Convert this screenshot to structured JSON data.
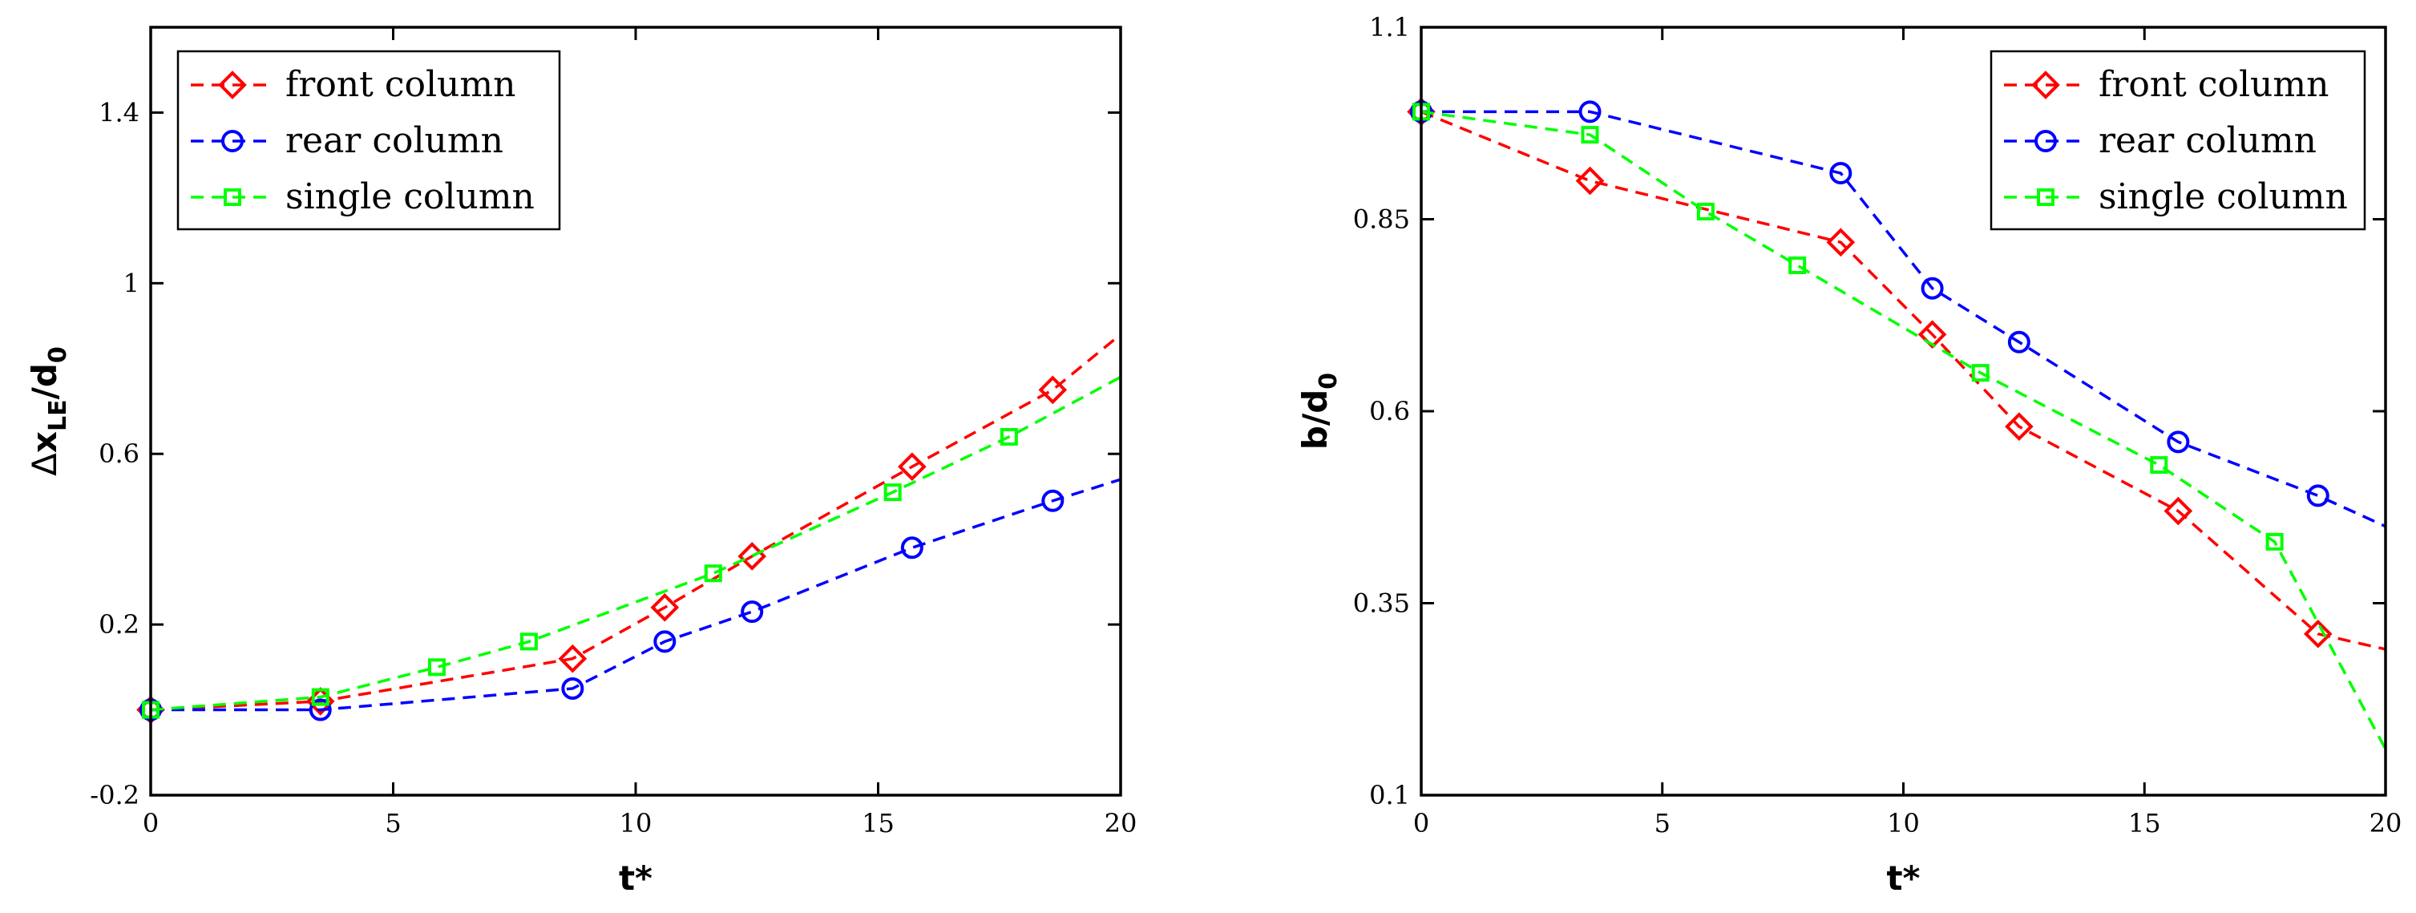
{
  "chart_data": [
    {
      "type": "line",
      "title": "",
      "xlabel": "t*",
      "ylabel": "Δx_LE/d_0",
      "ylabel_parts": {
        "delta": "Δ",
        "base": "x",
        "sub1": "LE",
        "slash": "/d",
        "sub2": "0"
      },
      "xlim": [
        0,
        20
      ],
      "ylim": [
        -0.2,
        1.6
      ],
      "xticks": [
        0,
        5,
        10,
        15,
        20
      ],
      "yticks": [
        -0.2,
        0.2,
        0.6,
        1,
        1.4
      ],
      "ytick_labels": [
        "-0.2",
        "0.2",
        "0.6",
        "1",
        "1.4"
      ],
      "xtick_labels": [
        "0",
        "5",
        "10",
        "15",
        "20"
      ],
      "grid": false,
      "legend_position": "top-left",
      "series": [
        {
          "name": "front column",
          "color": "#ff0000",
          "marker": "diamond",
          "x": [
            0,
            3.5,
            8.7,
            10.6,
            12.4,
            15.7,
            18.6,
            20
          ],
          "y": [
            0,
            0.02,
            0.12,
            0.24,
            0.36,
            0.57,
            0.75,
            0.88
          ],
          "marker_count": 7
        },
        {
          "name": "rear column",
          "color": "#0000ff",
          "marker": "circle",
          "x": [
            0,
            3.5,
            8.7,
            10.6,
            12.4,
            15.7,
            18.6,
            20
          ],
          "y": [
            0,
            0.0,
            0.05,
            0.16,
            0.23,
            0.38,
            0.49,
            0.54
          ],
          "marker_count": 7
        },
        {
          "name": "single column",
          "color": "#00ff00",
          "marker": "square",
          "x": [
            0,
            3.5,
            5.9,
            7.8,
            11.6,
            15.3,
            17.7,
            20
          ],
          "y": [
            0,
            0.03,
            0.1,
            0.16,
            0.32,
            0.51,
            0.64,
            0.78
          ],
          "marker_count": 7
        }
      ]
    },
    {
      "type": "line",
      "title": "",
      "xlabel": "t*",
      "ylabel": "b/d_0",
      "ylabel_parts": {
        "base": "b/d",
        "sub": "0"
      },
      "xlim": [
        0,
        20
      ],
      "ylim": [
        0.1,
        1.1
      ],
      "xticks": [
        0,
        5,
        10,
        15,
        20
      ],
      "yticks": [
        0.1,
        0.35,
        0.6,
        0.85,
        1.1
      ],
      "ytick_labels": [
        "0.1",
        "0.35",
        "0.6",
        "0.85",
        "1.1"
      ],
      "xtick_labels": [
        "0",
        "5",
        "10",
        "15",
        "20"
      ],
      "grid": false,
      "legend_position": "top-right",
      "series": [
        {
          "name": "front column",
          "color": "#ff0000",
          "marker": "diamond",
          "x": [
            0,
            3.5,
            8.7,
            10.6,
            12.4,
            15.7,
            18.6,
            20
          ],
          "y": [
            0.99,
            0.9,
            0.82,
            0.7,
            0.58,
            0.47,
            0.31,
            0.29
          ],
          "marker_count": 7
        },
        {
          "name": "rear column",
          "color": "#0000ff",
          "marker": "circle",
          "x": [
            0,
            3.5,
            8.7,
            10.6,
            12.4,
            15.7,
            18.6,
            20
          ],
          "y": [
            0.99,
            0.99,
            0.91,
            0.76,
            0.69,
            0.56,
            0.49,
            0.45
          ],
          "marker_count": 7
        },
        {
          "name": "single column",
          "color": "#00ff00",
          "marker": "square",
          "x": [
            0,
            3.5,
            5.9,
            7.8,
            11.6,
            15.3,
            17.7,
            20
          ],
          "y": [
            0.99,
            0.96,
            0.86,
            0.79,
            0.65,
            0.53,
            0.43,
            0.16
          ],
          "marker_count": 7
        }
      ]
    }
  ]
}
